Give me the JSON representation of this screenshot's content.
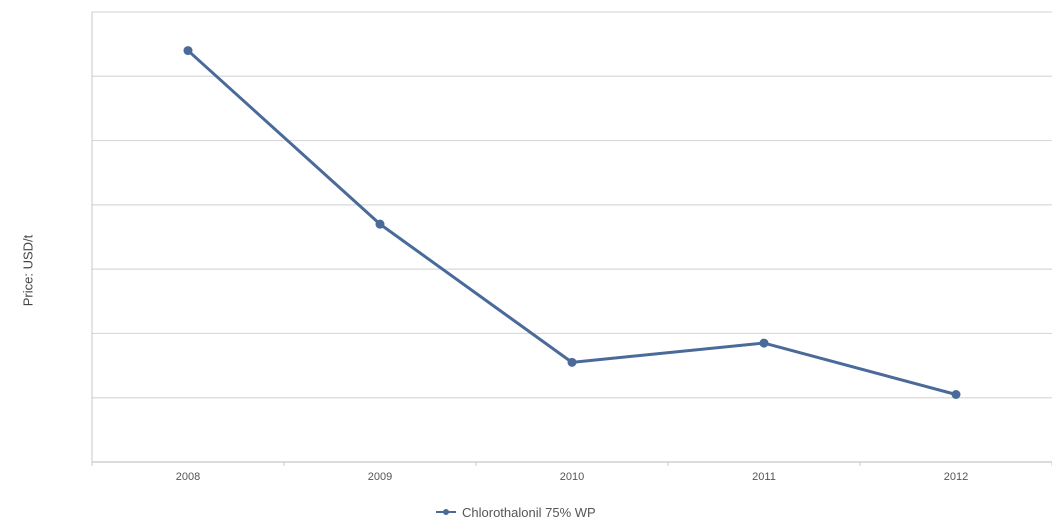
{
  "chart_data": {
    "type": "line",
    "title": "",
    "xlabel": "",
    "ylabel": "Price: USD/t",
    "categories": [
      "2008",
      "2009",
      "2010",
      "2011",
      "2012"
    ],
    "series": [
      {
        "name": "Chlorothalonil 75% WP",
        "values": [
          9400,
          6700,
          4550,
          4850,
          4050
        ]
      }
    ],
    "ylim": [
      3000,
      10000
    ],
    "y_gridlines": [
      4000,
      5000,
      6000,
      7000,
      8000,
      9000,
      10000
    ],
    "grid": true,
    "legend_position": "bottom-center",
    "colors": {
      "series": "#4a6a9a",
      "grid": "#d9d9d9",
      "axis": "#c8c8c8",
      "tick_label": "#555555"
    }
  }
}
